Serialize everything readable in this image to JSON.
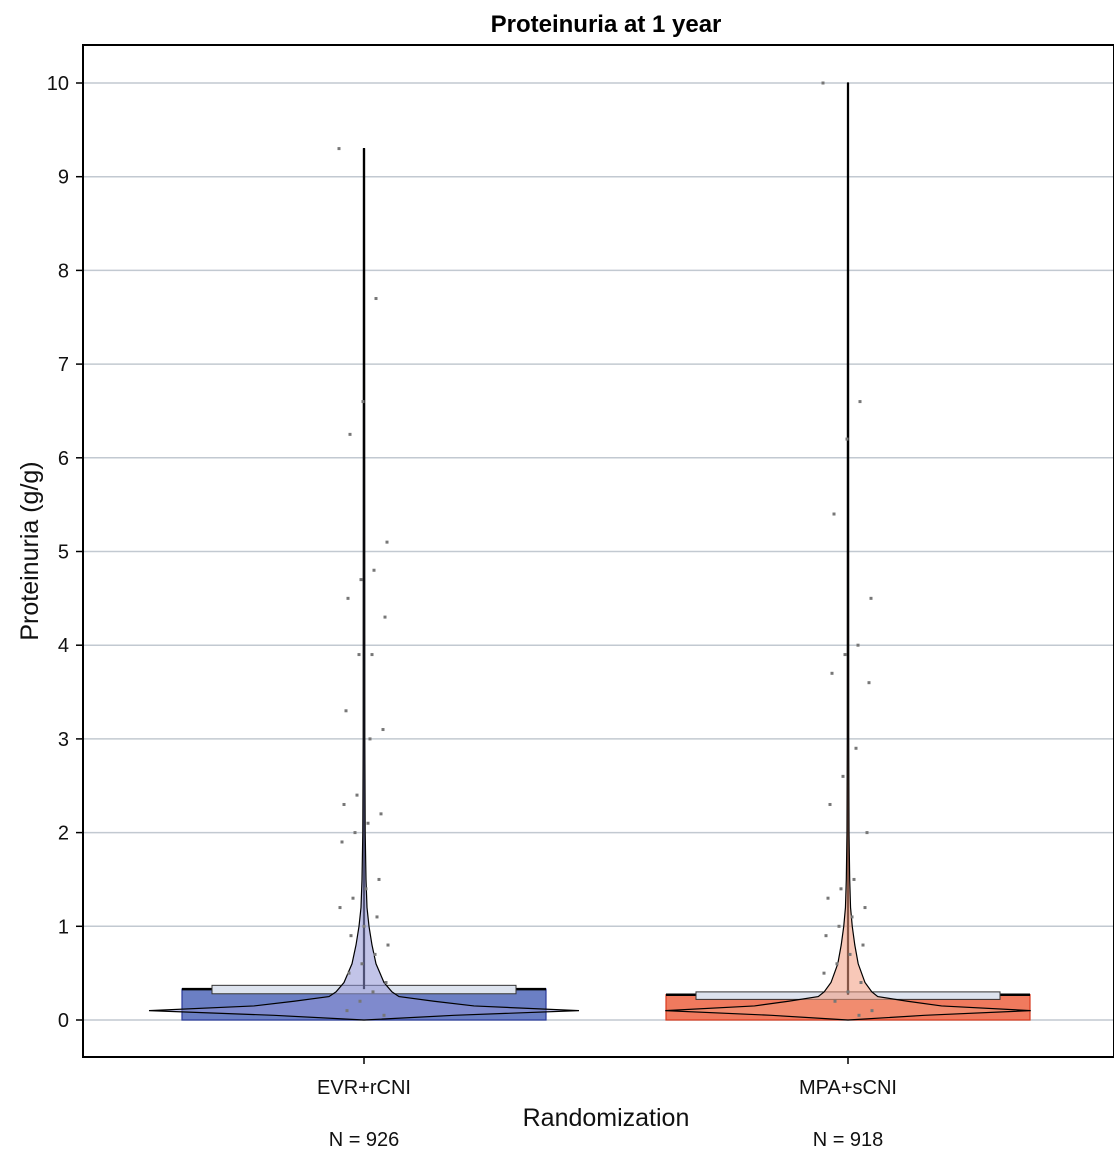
{
  "chart_data": {
    "type": "box",
    "title": "Proteinuria at 1 year",
    "xlabel": "Randomization",
    "ylabel": "Proteinuria (g/g)",
    "ylim": [
      -0.4,
      10.4
    ],
    "yticks": [
      0,
      1,
      2,
      3,
      4,
      5,
      6,
      7,
      8,
      9,
      10
    ],
    "grid": "horizontal",
    "categories": [
      "EVR+rCNI",
      "MPA+sCNI"
    ],
    "n_labels": [
      "N = 926",
      "N = 918"
    ],
    "series": [
      {
        "category": "EVR+rCNI",
        "color": "#6b7fc4",
        "violin_color": "#8f93d6",
        "min": 0.0,
        "q1": 0.0,
        "median": 0.31,
        "q3": 0.33,
        "max": 9.3,
        "mean_box": [
          0.28,
          0.37
        ],
        "outliers": [
          9.3,
          7.7,
          6.6,
          6.25,
          5.1,
          4.8,
          4.7,
          4.5,
          4.3,
          3.9,
          3.9,
          3.3,
          3.1,
          3.0,
          2.4,
          2.3,
          2.2,
          2.1,
          2.0,
          1.9,
          1.5,
          1.4,
          1.3,
          1.2,
          1.1,
          1.0,
          0.9,
          0.8,
          0.7,
          0.6,
          0.5,
          0.4,
          0.3,
          0.2,
          0.1,
          0.05
        ]
      },
      {
        "category": "MPA+sCNI",
        "color": "#f07a5e",
        "violin_color": "#f29a7e",
        "min": 0.0,
        "q1": 0.0,
        "median": 0.25,
        "q3": 0.27,
        "max": 10.0,
        "mean_box": [
          0.22,
          0.3
        ],
        "outliers": [
          10.0,
          6.6,
          6.2,
          5.4,
          4.5,
          4.0,
          3.9,
          3.7,
          3.6,
          2.9,
          2.6,
          2.3,
          2.0,
          1.5,
          1.4,
          1.3,
          1.2,
          1.1,
          1.0,
          0.9,
          0.8,
          0.7,
          0.6,
          0.5,
          0.4,
          0.3,
          0.2,
          0.1,
          0.05
        ]
      }
    ]
  }
}
